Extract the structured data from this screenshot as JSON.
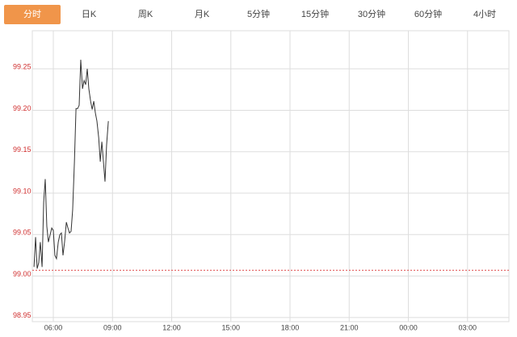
{
  "tabs": [
    "分时",
    "日K",
    "周K",
    "月K",
    "5分钟",
    "15分钟",
    "30分钟",
    "60分钟",
    "4小时"
  ],
  "active_tab": 0,
  "chart_data": {
    "type": "line",
    "x": [
      0.02,
      0.1,
      0.18,
      0.26,
      0.34,
      0.43,
      0.51,
      0.59,
      0.67,
      0.75,
      0.84,
      0.92,
      1.0,
      1.08,
      1.16,
      1.25,
      1.33,
      1.41,
      1.49,
      1.57,
      1.66,
      1.74,
      1.82,
      1.9,
      1.98,
      2.07,
      2.15,
      2.23,
      2.31,
      2.39,
      2.48,
      2.56,
      2.64,
      2.72,
      2.8,
      2.89,
      2.97,
      3.05,
      3.13,
      3.21,
      3.3,
      3.38,
      3.46,
      3.54,
      3.62,
      3.7,
      3.79
    ],
    "series": [
      {
        "color": "#333333",
        "values": [
          99.011,
          99.047,
          99.009,
          99.016,
          99.041,
          99.011,
          99.089,
          99.117,
          99.06,
          99.041,
          99.05,
          99.058,
          99.055,
          99.025,
          99.021,
          99.041,
          99.05,
          99.052,
          99.025,
          99.041,
          99.065,
          99.058,
          99.052,
          99.054,
          99.08,
          99.138,
          99.202,
          99.202,
          99.206,
          99.261,
          99.226,
          99.236,
          99.231,
          99.25,
          99.226,
          99.211,
          99.201,
          99.211,
          99.197,
          99.187,
          99.167,
          99.138,
          99.162,
          99.138,
          99.114,
          99.158,
          99.187
        ]
      }
    ],
    "xlim": [
      0,
      24
    ],
    "xticks": [
      {
        "value": 1,
        "label": "06:00"
      },
      {
        "value": 4,
        "label": "09:00"
      },
      {
        "value": 7,
        "label": "12:00"
      },
      {
        "value": 10,
        "label": "15:00"
      },
      {
        "value": 13,
        "label": "18:00"
      },
      {
        "value": 16,
        "label": "21:00"
      },
      {
        "value": 19,
        "label": "00:00"
      },
      {
        "value": 22,
        "label": "03:00"
      }
    ],
    "ylim": [
      98.945,
      99.296
    ],
    "yticks": [
      {
        "value": 98.95,
        "label": "98.95"
      },
      {
        "value": 99.0,
        "label": "99.00"
      },
      {
        "value": 99.05,
        "label": "99.05"
      },
      {
        "value": 99.1,
        "label": "99.10"
      },
      {
        "value": 99.15,
        "label": "99.15"
      },
      {
        "value": 99.2,
        "label": "99.20"
      },
      {
        "value": 99.25,
        "label": "99.25"
      }
    ],
    "reference_line": {
      "value": 99.007,
      "color": "#e05050"
    },
    "ytick_color": "#d03030",
    "grid": true
  }
}
